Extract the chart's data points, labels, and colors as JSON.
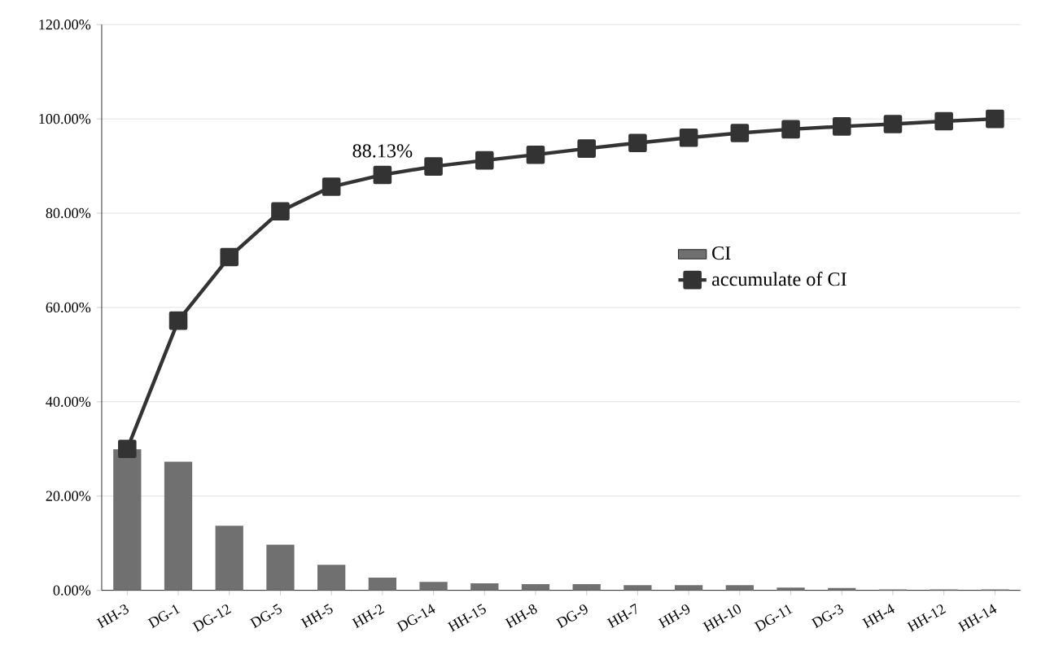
{
  "chart_data": {
    "type": "bar",
    "categories": [
      "HH-3",
      "DG-1",
      "DG-12",
      "DG-5",
      "HH-5",
      "HH-2",
      "DG-14",
      "HH-15",
      "HH-8",
      "DG-9",
      "HH-7",
      "HH-9",
      "HH-10",
      "DG-11",
      "DG-3",
      "HH-4",
      "HH-12",
      "HH-14"
    ],
    "series": [
      {
        "name": "CI",
        "color": "#707070",
        "values": [
          29.9,
          27.3,
          13.7,
          9.7,
          5.4,
          2.7,
          1.8,
          1.5,
          1.3,
          1.3,
          1.1,
          1.1,
          1.1,
          0.6,
          0.5,
          0.2,
          0.2,
          0.2
        ]
      },
      {
        "name": "accumulate of CI",
        "type": "line",
        "color": "#333333",
        "marker": "square",
        "values": [
          30.0,
          57.2,
          70.7,
          80.4,
          85.6,
          88.13,
          89.9,
          91.2,
          92.4,
          93.7,
          94.9,
          96.0,
          97.0,
          97.8,
          98.4,
          98.9,
          99.5,
          100.0
        ],
        "value_labels": [
          null,
          null,
          null,
          null,
          null,
          "88.13%",
          null,
          null,
          null,
          null,
          null,
          null,
          null,
          null,
          null,
          null,
          null,
          null
        ]
      }
    ],
    "ylim": [
      0,
      120
    ],
    "yticks": [
      {
        "value": 0,
        "label": "0.00%"
      },
      {
        "value": 20,
        "label": "20.00%"
      },
      {
        "value": 40,
        "label": "40.00%"
      },
      {
        "value": 60,
        "label": "60.00%"
      },
      {
        "value": 80,
        "label": "80.00%"
      },
      {
        "value": 100,
        "label": "100.00%"
      },
      {
        "value": 120,
        "label": "120.00%"
      }
    ],
    "grid": "y",
    "legend": "right"
  }
}
